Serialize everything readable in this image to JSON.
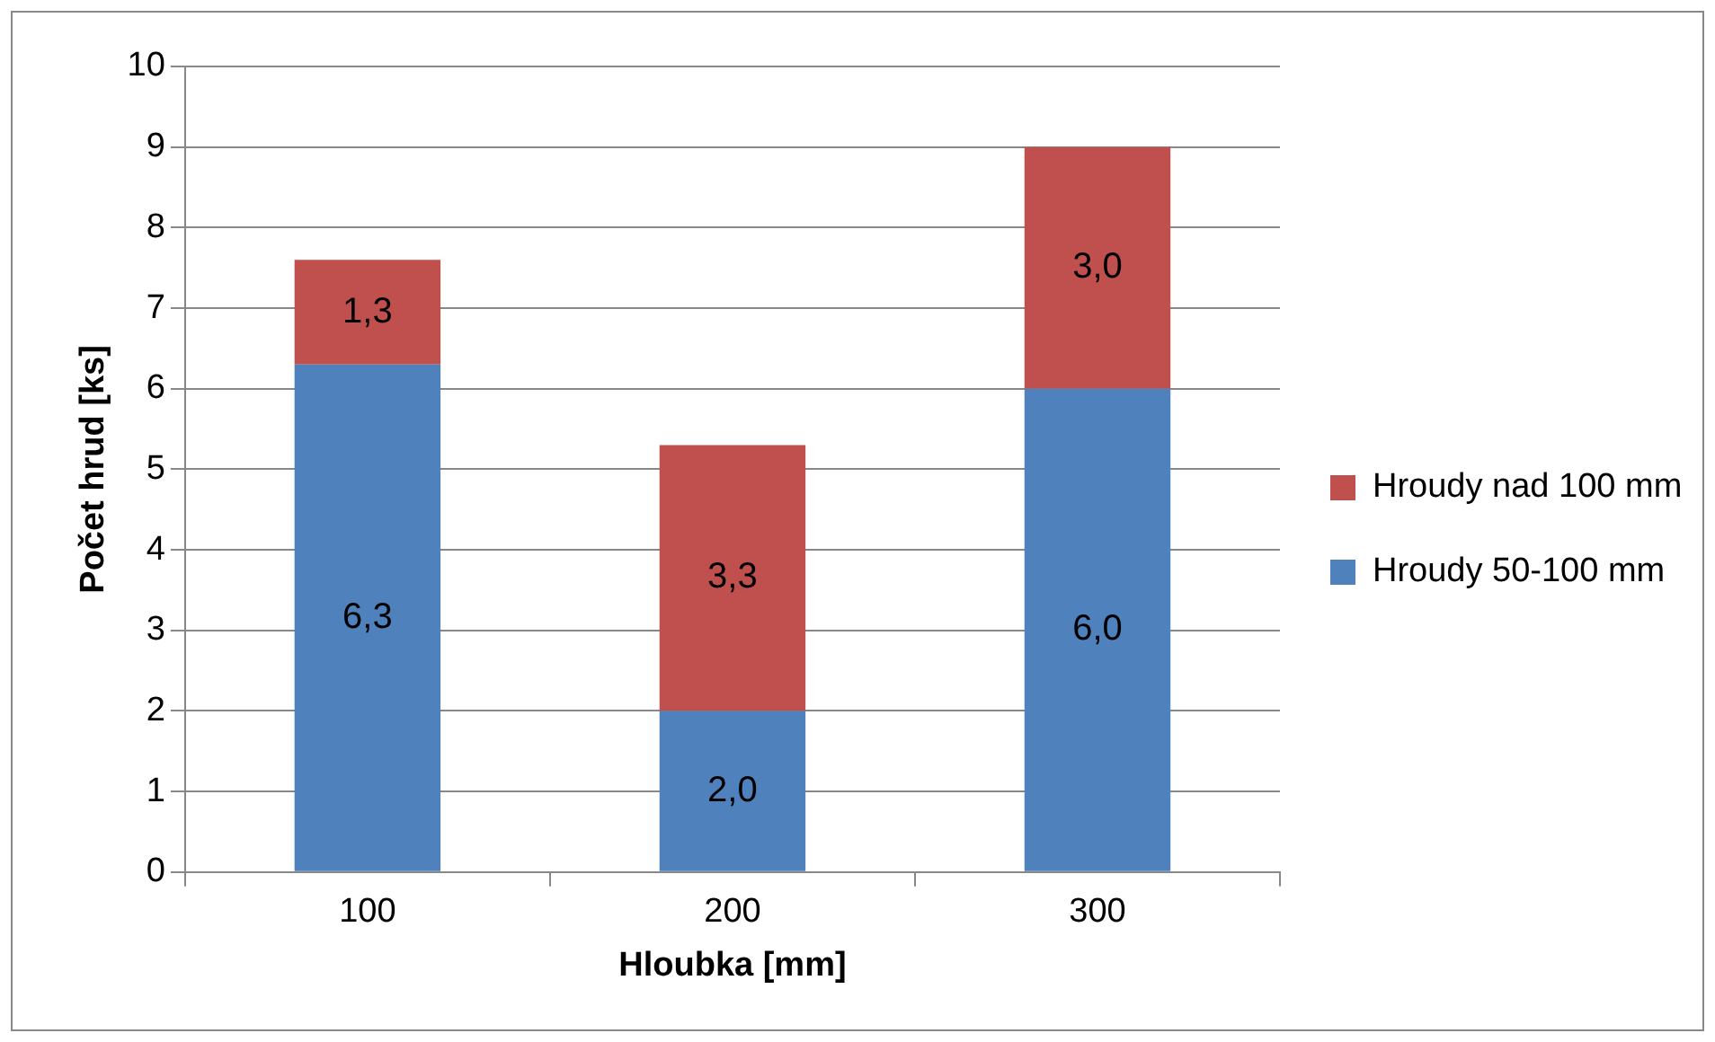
{
  "chart_data": {
    "type": "bar",
    "stacked": true,
    "xlabel": "Hloubka [mm]",
    "ylabel": "Počet hrud [ks]",
    "categories": [
      "100",
      "200",
      "300"
    ],
    "series": [
      {
        "name": "Hroudy 50-100 mm",
        "color": "#4f81bd",
        "values": [
          6.3,
          2.0,
          6.0
        ],
        "value_labels": [
          "6,3",
          "2,0",
          "6,0"
        ]
      },
      {
        "name": "Hroudy nad 100 mm",
        "color": "#c0504d",
        "values": [
          1.3,
          3.3,
          3.0
        ],
        "value_labels": [
          "1,3",
          "3,3",
          "3,0"
        ]
      }
    ],
    "ylim": [
      0,
      10
    ],
    "yticks": [
      0,
      1,
      2,
      3,
      4,
      5,
      6,
      7,
      8,
      9,
      10
    ],
    "grid": "y",
    "legend": "right"
  }
}
